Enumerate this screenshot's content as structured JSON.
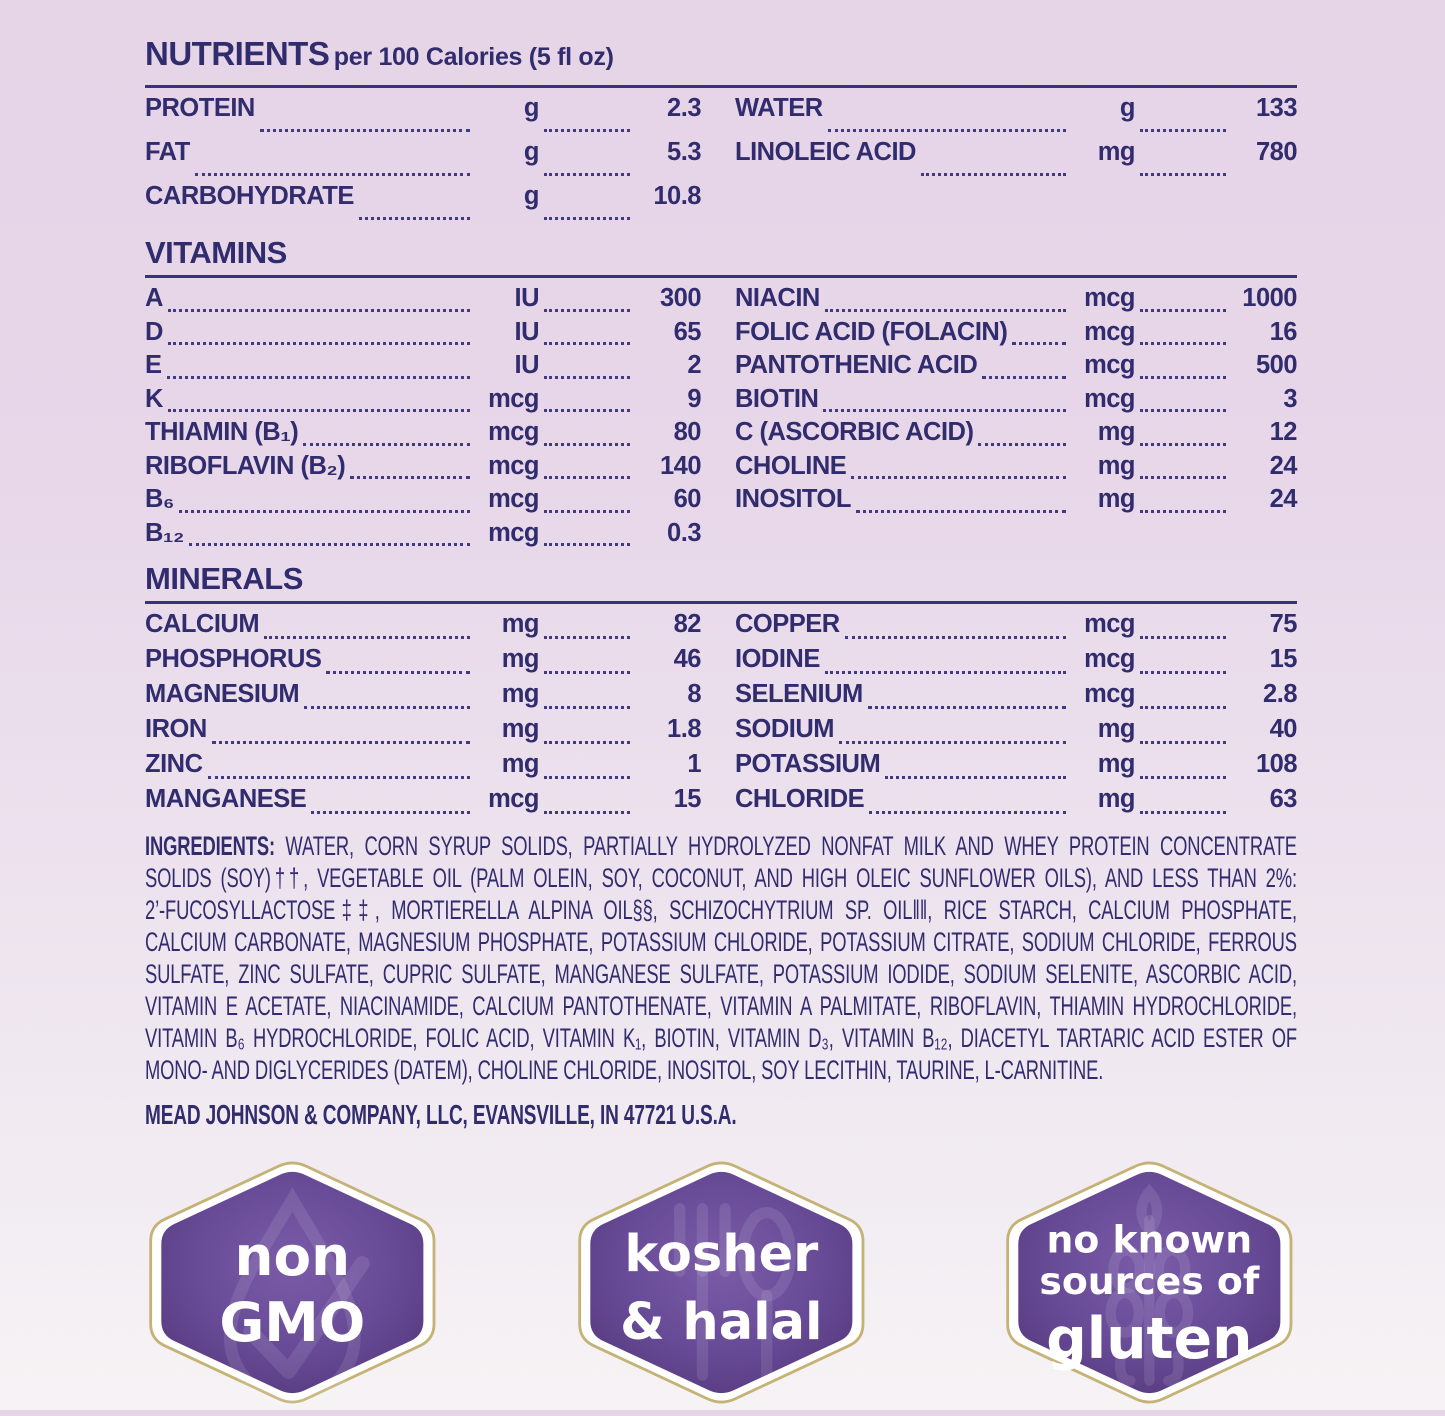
{
  "header": {
    "title": "NUTRIENTS",
    "subtitle": "per 100 Calories (5 fl oz)"
  },
  "nutrients": {
    "left": [
      {
        "label": "PROTEIN",
        "unit": "g",
        "value": "2.3"
      },
      {
        "label": "FAT",
        "unit": "g",
        "value": "5.3"
      },
      {
        "label": "CARBOHYDRATE",
        "unit": "g",
        "value": "10.8"
      }
    ],
    "right": [
      {
        "label": "WATER",
        "unit": "g",
        "value": "133"
      },
      {
        "label": "LINOLEIC ACID",
        "unit": "mg",
        "value": "780"
      }
    ]
  },
  "vitamins": {
    "heading": "VITAMINS",
    "left": [
      {
        "label": "A",
        "unit": "IU",
        "value": "300"
      },
      {
        "label": "D",
        "unit": "IU",
        "value": "65"
      },
      {
        "label": "E",
        "unit": "IU",
        "value": "2"
      },
      {
        "label": "K",
        "unit": "mcg",
        "value": "9"
      },
      {
        "label": "THIAMIN (B₁)",
        "unit": "mcg",
        "value": "80"
      },
      {
        "label": "RIBOFLAVIN (B₂)",
        "unit": "mcg",
        "value": "140"
      },
      {
        "label": "B₆",
        "unit": "mcg",
        "value": "60"
      },
      {
        "label": "B₁₂",
        "unit": "mcg",
        "value": "0.3"
      }
    ],
    "right": [
      {
        "label": "NIACIN",
        "unit": "mcg",
        "value": "1000"
      },
      {
        "label": "FOLIC ACID (FOLACIN)",
        "unit": "mcg",
        "value": "16"
      },
      {
        "label": "PANTOTHENIC ACID",
        "unit": "mcg",
        "value": "500"
      },
      {
        "label": "BIOTIN",
        "unit": "mcg",
        "value": "3"
      },
      {
        "label": "C (ASCORBIC ACID)",
        "unit": "mg",
        "value": "12"
      },
      {
        "label": "CHOLINE",
        "unit": "mg",
        "value": "24"
      },
      {
        "label": "INOSITOL",
        "unit": "mg",
        "value": "24"
      }
    ]
  },
  "minerals": {
    "heading": "MINERALS",
    "left": [
      {
        "label": "CALCIUM",
        "unit": "mg",
        "value": "82"
      },
      {
        "label": "PHOSPHORUS",
        "unit": "mg",
        "value": "46"
      },
      {
        "label": "MAGNESIUM",
        "unit": "mg",
        "value": "8"
      },
      {
        "label": "IRON",
        "unit": "mg",
        "value": "1.8"
      },
      {
        "label": "ZINC",
        "unit": "mg",
        "value": "1"
      },
      {
        "label": "MANGANESE",
        "unit": "mcg",
        "value": "15"
      }
    ],
    "right": [
      {
        "label": "COPPER",
        "unit": "mcg",
        "value": "75"
      },
      {
        "label": "IODINE",
        "unit": "mcg",
        "value": "15"
      },
      {
        "label": "SELENIUM",
        "unit": "mcg",
        "value": "2.8"
      },
      {
        "label": "SODIUM",
        "unit": "mg",
        "value": "40"
      },
      {
        "label": "POTASSIUM",
        "unit": "mg",
        "value": "108"
      },
      {
        "label": "CHLORIDE",
        "unit": "mg",
        "value": "63"
      }
    ]
  },
  "ingredients": {
    "lead": "INGREDIENTS:",
    "first_line": " WATER, CORN SYRUP SOLIDS, PARTIALLY HYDROLYZED NONFAT MILK AND WHEY PROTEIN CONCENTRATE",
    "lines": [
      "SOLIDS (SOY)††, VEGETABLE OIL (PALM OLEIN, SOY, COCONUT, AND HIGH OLEIC SUNFLOWER OILS), AND LESS THAN 2%:",
      "2’-FUCOSYLLACTOSE‡‡, MORTIERELLA ALPINA OIL§§, SCHIZOCHYTRIUM SP. OIL‖‖, RICE STARCH, CALCIUM PHOSPHATE,",
      "CALCIUM CARBONATE, MAGNESIUM PHOSPHATE, POTASSIUM CHLORIDE, POTASSIUM CITRATE, SODIUM CHLORIDE, FERROUS",
      "SULFATE, ZINC SULFATE, CUPRIC SULFATE, MANGANESE SULFATE, POTASSIUM IODIDE, SODIUM SELENITE, ASCORBIC ACID,",
      "VITAMIN E ACETATE, NIACINAMIDE, CALCIUM PANTOTHENATE, VITAMIN A PALMITATE, RIBOFLAVIN, THIAMIN HYDROCHLORIDE,",
      "VITAMIN B₆ HYDROCHLORIDE, FOLIC ACID, VITAMIN K₁, BIOTIN, VITAMIN D₃, VITAMIN B₁₂, DIACETYL TARTARIC ACID ESTER OF",
      "MONO- AND DIGLYCERIDES (DATEM), CHOLINE CHLORIDE, INOSITOL, SOY LECITHIN, TAURINE, L-CARNITINE."
    ]
  },
  "manufacturer": "MEAD JOHNSON & COMPANY, LLC, EVANSVILLE, IN 47721 U.S.A.",
  "badges": [
    {
      "name": "non-gmo",
      "icon": "droplet-check-icon",
      "lines": [
        "non",
        "GMO"
      ]
    },
    {
      "name": "kosher-halal",
      "icon": "fork-spoon-icon",
      "lines": [
        "kosher",
        "& halal"
      ]
    },
    {
      "name": "gluten-free",
      "icon": "wheat-icon",
      "lines": [
        "no known",
        "sources of",
        "gluten"
      ]
    }
  ],
  "colors": {
    "text_navy": "#312c6e",
    "rule_navy": "#39327a",
    "background_top": "#e6d4e7",
    "background_bottom": "#f6f3f5",
    "badge_purple_center": "#7a5ba8",
    "badge_purple_edge": "#523677",
    "badge_gold_ring": "#c4b277",
    "badge_text_white": "#ffffff"
  }
}
